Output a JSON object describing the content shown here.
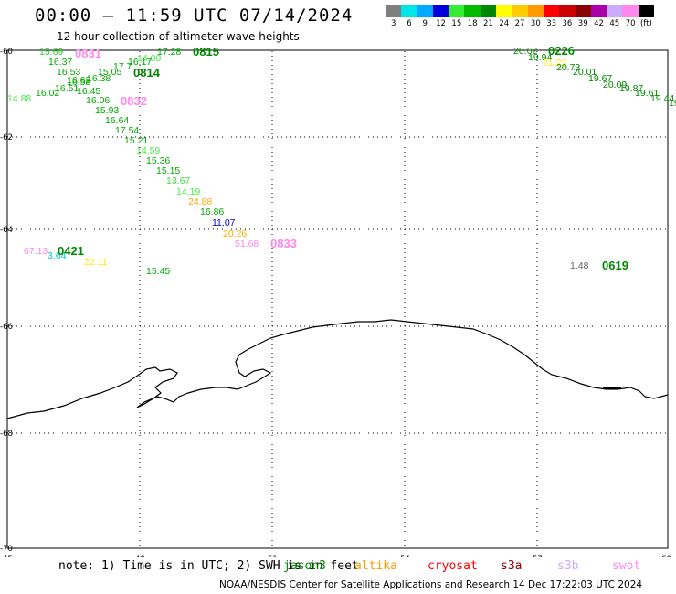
{
  "title": "00:00 – 11:59 UTC 07/14/2024",
  "subtitle": "12 hour collection of altimeter wave heights",
  "legend": {
    "colors": [
      "#7f7f7f",
      "#00e5e5",
      "#00aaff",
      "#0000dd",
      "#33ee33",
      "#00bb00",
      "#008800",
      "#ffff00",
      "#ffcc00",
      "#ff9900",
      "#ff0000",
      "#cc0000",
      "#880000",
      "#aa00aa",
      "#ccaaff",
      "#ff88ee",
      "#000000"
    ],
    "labels": [
      "3",
      "6",
      "9",
      "12",
      "15",
      "18",
      "21",
      "24",
      "27",
      "30",
      "33",
      "36",
      "39",
      "42",
      "45",
      "70",
      "(ft)"
    ]
  },
  "axes": {
    "x_ticks": [
      "45",
      "48",
      "51",
      "54",
      "57",
      "60"
    ],
    "y_ticks": [
      "-60",
      "-62",
      "-64",
      "-66",
      "-68",
      "-70"
    ]
  },
  "passes": [
    {
      "label": "0831",
      "color": "#ff88ee"
    },
    {
      "label": "0815",
      "color": "#008800"
    },
    {
      "label": "0814",
      "color": "#008800"
    },
    {
      "label": "0832",
      "color": "#ff88ee"
    },
    {
      "label": "0833",
      "color": "#ff88ee"
    },
    {
      "label": "0421",
      "color": "#008800"
    },
    {
      "label": "0226",
      "color": "#008800"
    },
    {
      "label": "0619",
      "color": "#008800"
    }
  ],
  "points": [
    {
      "v": "15.69",
      "color": "#33cc33"
    },
    {
      "v": "16.37",
      "color": "#00aa00"
    },
    {
      "v": "16.53",
      "color": "#00aa00"
    },
    {
      "v": "16.62",
      "color": "#00aa00"
    },
    {
      "v": "16.58",
      "color": "#00aa00"
    },
    {
      "v": "16.51",
      "color": "#00aa00"
    },
    {
      "v": "16.02",
      "color": "#00aa00"
    },
    {
      "v": "14.88",
      "color": "#44ee44"
    },
    {
      "v": "16.45",
      "color": "#00aa00"
    },
    {
      "v": "16.06",
      "color": "#00aa00"
    },
    {
      "v": "15.93",
      "color": "#00aa00"
    },
    {
      "v": "16.64",
      "color": "#00aa00"
    },
    {
      "v": "17.54",
      "color": "#00aa00"
    },
    {
      "v": "15.21",
      "color": "#00aa00"
    },
    {
      "v": "14.59",
      "color": "#44ee44"
    },
    {
      "v": "15.36",
      "color": "#00aa00"
    },
    {
      "v": "15.15",
      "color": "#00aa00"
    },
    {
      "v": "13.67",
      "color": "#44dd44"
    },
    {
      "v": "14.19",
      "color": "#44ee44"
    },
    {
      "v": "24.88",
      "color": "#ffaa00"
    },
    {
      "v": "16.86",
      "color": "#00aa00"
    },
    {
      "v": "11.07",
      "color": "#0000dd"
    },
    {
      "v": "20.26",
      "color": "#ffaa00"
    },
    {
      "v": "51.68",
      "color": "#ff88ee"
    },
    {
      "v": "17.28",
      "color": "#00aa00"
    },
    {
      "v": "14.00",
      "color": "#44ee44"
    },
    {
      "v": "16.17",
      "color": "#00aa00"
    },
    {
      "v": "17.7",
      "color": "#00aa00"
    },
    {
      "v": "15.05",
      "color": "#00aa00"
    },
    {
      "v": "16.38",
      "color": "#00aa00"
    },
    {
      "v": "67.13",
      "color": "#ff88ee"
    },
    {
      "v": "3.64",
      "color": "#00cccc"
    },
    {
      "v": "22.11",
      "color": "#ffee00"
    },
    {
      "v": "15.45",
      "color": "#00aa00"
    },
    {
      "v": "20.62",
      "color": "#008800"
    },
    {
      "v": "19.94",
      "color": "#008800"
    },
    {
      "v": "21.22",
      "color": "#ffee00"
    },
    {
      "v": "20.73",
      "color": "#008800"
    },
    {
      "v": "20.01",
      "color": "#008800"
    },
    {
      "v": "19.67",
      "color": "#008800"
    },
    {
      "v": "20.09",
      "color": "#008800"
    },
    {
      "v": "19.87",
      "color": "#008800"
    },
    {
      "v": "19.61",
      "color": "#008800"
    },
    {
      "v": "19.44",
      "color": "#008800"
    },
    {
      "v": "19",
      "color": "#008800"
    },
    {
      "v": "1.48",
      "color": "#666666"
    }
  ],
  "note": "note: 1) Time is in UTC; 2) SWH is in feet",
  "satellites": [
    {
      "name": "jason3",
      "color": "#008800"
    },
    {
      "name": "altika",
      "color": "#ff9900"
    },
    {
      "name": "cryosat",
      "color": "#ff0000"
    },
    {
      "name": "s3a",
      "color": "#880000"
    },
    {
      "name": "s3b",
      "color": "#ccaaff"
    },
    {
      "name": "swot",
      "color": "#ff88ee"
    }
  ],
  "footer": "NOAA/NESDIS Center for Satellite Applications and Research    14 Dec 17:22:03 UTC 2024"
}
